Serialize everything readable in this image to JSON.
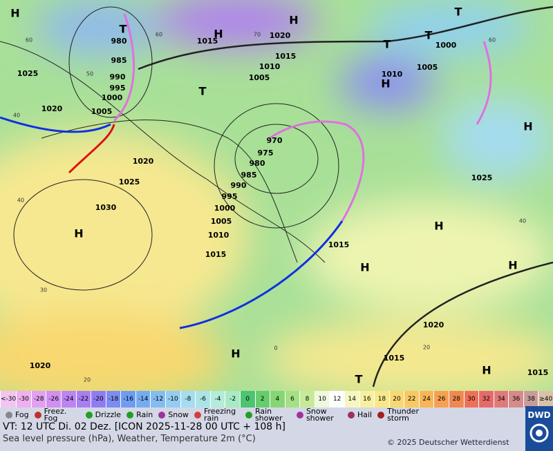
{
  "map": {
    "isobar_labels": [
      980,
      985,
      990,
      995,
      1000,
      1005,
      1020,
      1025,
      1020,
      1025,
      1030,
      1015,
      1015,
      1010,
      1005,
      1020,
      1000,
      1005,
      1010,
      970,
      975,
      980,
      985,
      990,
      995,
      1000,
      1005,
      1010,
      1015,
      1015,
      1025,
      1020,
      1015,
      1020,
      1015
    ],
    "pressure_centers": [
      "H",
      "T",
      "H",
      "H",
      "T",
      "T",
      "T",
      "T",
      "H",
      "H",
      "H",
      "H",
      "H",
      "H",
      "H",
      "T",
      "H"
    ],
    "temperature_labels": [
      60,
      50,
      40,
      40,
      30,
      20,
      60,
      70,
      60,
      40,
      20,
      0
    ]
  },
  "legend": {
    "temperature_scale": [
      {
        "label": "<-30",
        "color": "#f2c4f2"
      },
      {
        "label": -30,
        "color": "#eeb0f0"
      },
      {
        "label": -28,
        "color": "#e2a0f0"
      },
      {
        "label": -26,
        "color": "#d090f0"
      },
      {
        "label": -24,
        "color": "#bc84f2"
      },
      {
        "label": -22,
        "color": "#a87ef2"
      },
      {
        "label": -20,
        "color": "#907cf2"
      },
      {
        "label": -18,
        "color": "#7c8cf2"
      },
      {
        "label": -16,
        "color": "#6e9cf2"
      },
      {
        "label": -14,
        "color": "#74acf2"
      },
      {
        "label": -12,
        "color": "#84bcf2"
      },
      {
        "label": -10,
        "color": "#94ccf2"
      },
      {
        "label": -8,
        "color": "#a4dcf0"
      },
      {
        "label": -6,
        "color": "#ace4e6"
      },
      {
        "label": -4,
        "color": "#b4ecdc"
      },
      {
        "label": -2,
        "color": "#a8eac4"
      },
      {
        "label": 0,
        "color": "#4cc470"
      },
      {
        "label": 2,
        "color": "#66cc6c"
      },
      {
        "label": 4,
        "color": "#86d676"
      },
      {
        "label": 6,
        "color": "#a6e086"
      },
      {
        "label": 8,
        "color": "#c6ea98"
      },
      {
        "label": 10,
        "color": "#eef8dc"
      },
      {
        "label": 12,
        "color": "#ffffff"
      },
      {
        "label": 14,
        "color": "#f8f6c0"
      },
      {
        "label": 16,
        "color": "#f8f0a0"
      },
      {
        "label": 18,
        "color": "#f8e888"
      },
      {
        "label": 20,
        "color": "#f8d872"
      },
      {
        "label": 22,
        "color": "#f8c862"
      },
      {
        "label": 24,
        "color": "#f8b658"
      },
      {
        "label": 26,
        "color": "#f6a052"
      },
      {
        "label": 28,
        "color": "#f08852"
      },
      {
        "label": 30,
        "color": "#ee7058"
      },
      {
        "label": 32,
        "color": "#e66a6a"
      },
      {
        "label": 34,
        "color": "#de7a7a"
      },
      {
        "label": 36,
        "color": "#d68a8a"
      },
      {
        "label": 38,
        "color": "#c89c98"
      },
      {
        "label": "≥40",
        "color": "#d8c2a8"
      }
    ],
    "weather": [
      "Fog",
      "Freez. Fog",
      "Drizzle",
      "Rain",
      "Snow",
      "Freezing rain",
      "Rain shower",
      "Snow shower",
      "Hail",
      "Thunder storm"
    ]
  },
  "footer": {
    "valid_time": "VT: 12 UTC Di.  02 Dez. [ICON 2025-11-28  00 UTC + 108 h]",
    "description": "Sea level pressure (hPa), Weather, Temperature 2m (°C)",
    "copyright": "© 2025 Deutscher Wetterdienst",
    "logo": "DWD"
  }
}
